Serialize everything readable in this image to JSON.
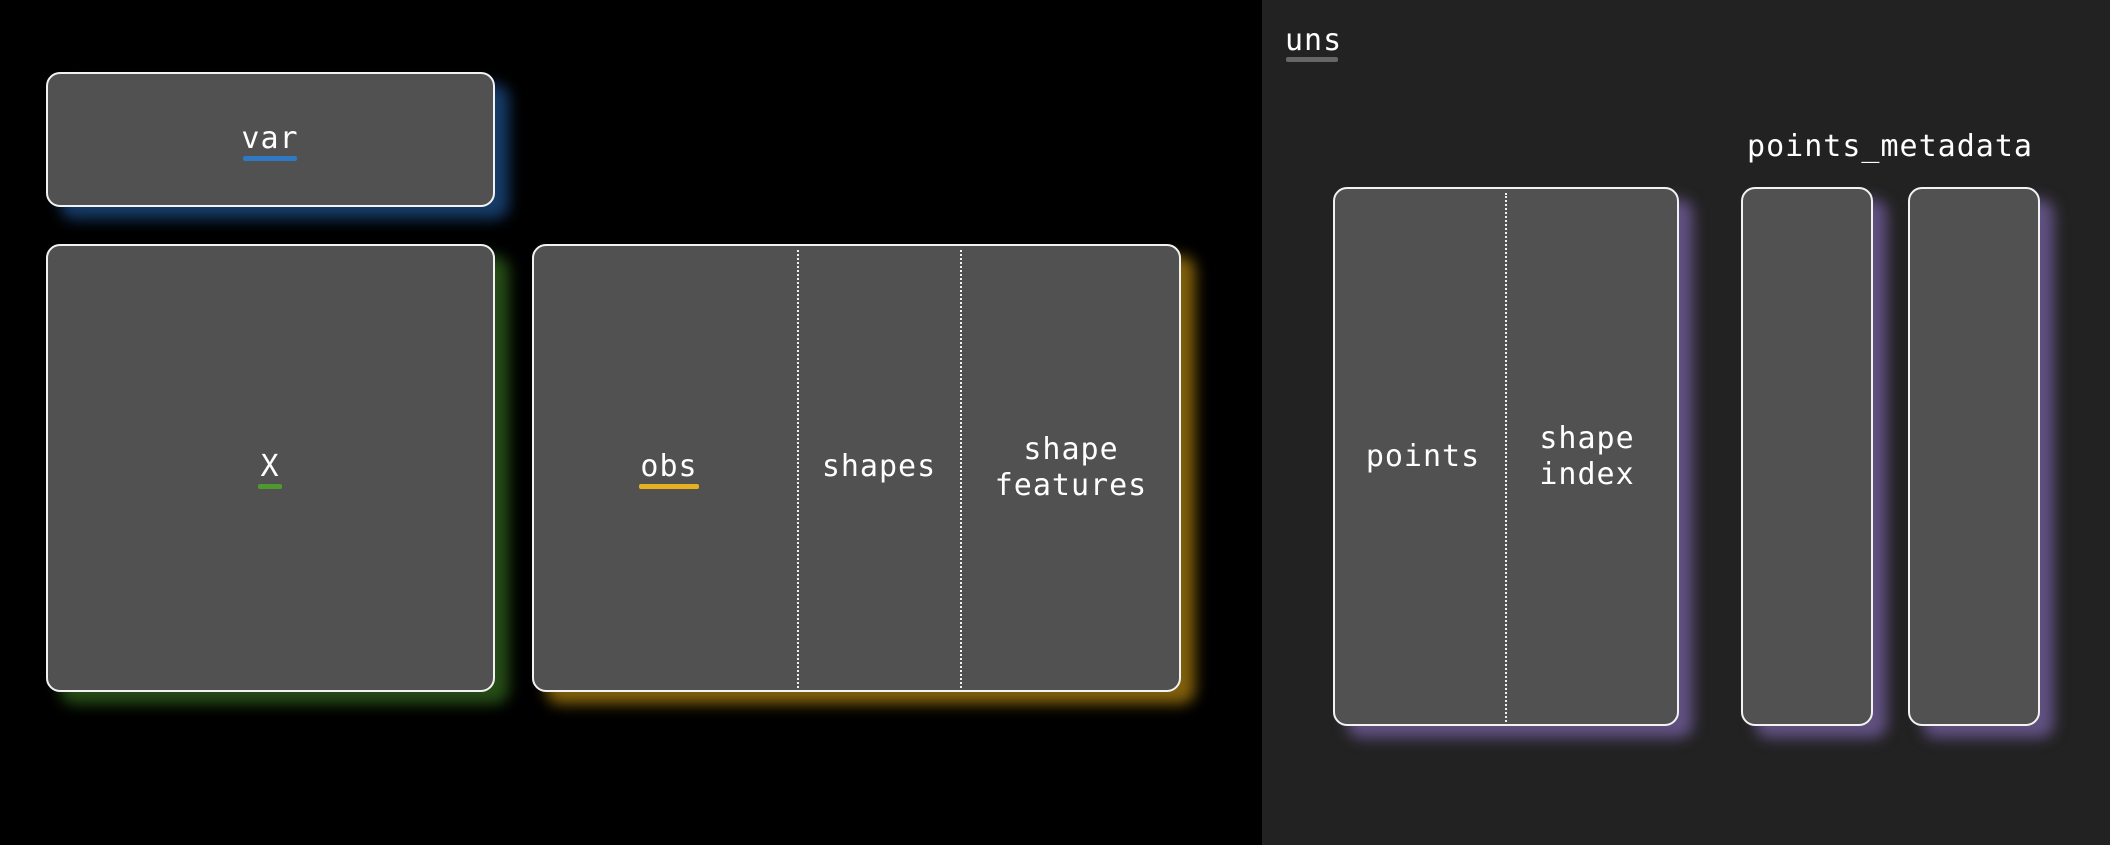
{
  "labels": {
    "var": "var",
    "x": "X",
    "obs": "obs",
    "shapes": "shapes",
    "shape_features_line1": "shape",
    "shape_features_line2": "features",
    "uns": "uns",
    "points_metadata": "points_metadata",
    "points": "points",
    "shape_index_line1": "shape",
    "shape_index_line2": "index"
  },
  "colors": {
    "var_accent": "#2f78c4",
    "x_accent": "#4f9a2e",
    "obs_accent": "#e8b021",
    "uns_accent": "#666666",
    "points_accent": "#9a82d2",
    "left_background": "#000000",
    "right_background": "#222222",
    "box_fill": "#515151",
    "box_border": "#f2f2f2"
  }
}
